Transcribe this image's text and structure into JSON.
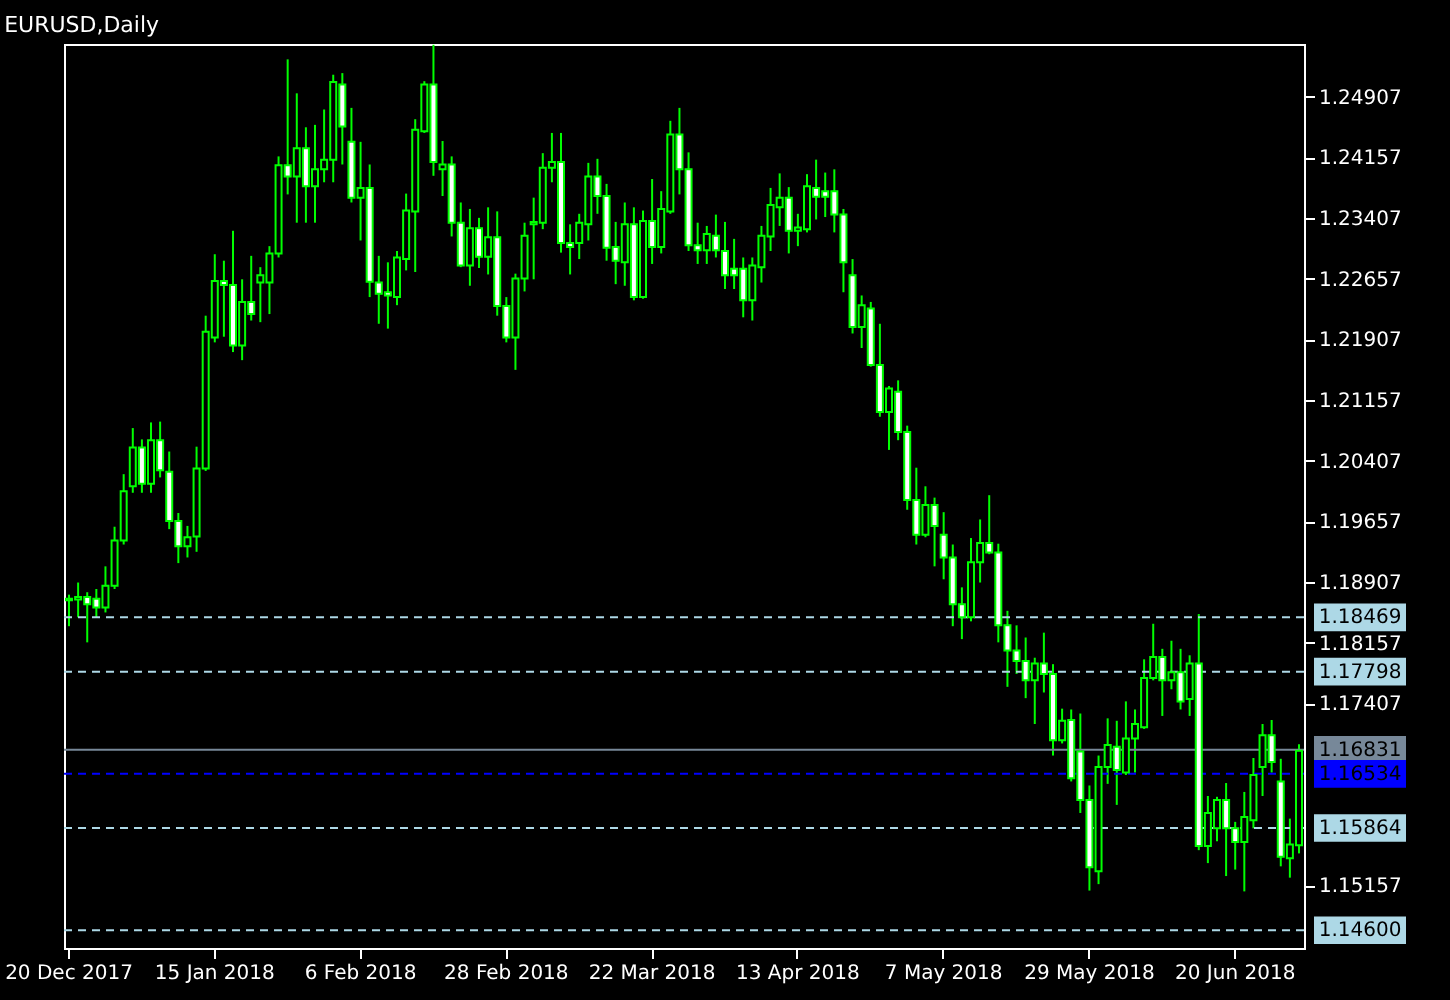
{
  "chart_data": {
    "type": "candlestick",
    "title": "EURUSD,Daily",
    "color": "#00ff00",
    "categories": [
      "20 Dec 2017",
      null,
      null,
      null,
      null,
      null,
      null,
      null,
      null,
      null,
      null,
      null,
      null,
      null,
      null,
      null,
      "15 Jan 2018",
      null,
      null,
      null,
      null,
      null,
      null,
      null,
      null,
      null,
      null,
      null,
      null,
      null,
      null,
      null,
      "6 Feb 2018",
      null,
      null,
      null,
      null,
      null,
      null,
      null,
      null,
      null,
      null,
      null,
      null,
      null,
      null,
      null,
      "28 Feb 2018",
      null,
      null,
      null,
      null,
      null,
      null,
      null,
      null,
      null,
      null,
      null,
      null,
      null,
      null,
      null,
      "22 Mar 2018",
      null,
      null,
      null,
      null,
      null,
      null,
      null,
      null,
      null,
      null,
      null,
      null,
      null,
      null,
      null,
      "13 Apr 2018",
      null,
      null,
      null,
      null,
      null,
      null,
      null,
      null,
      null,
      null,
      null,
      null,
      null,
      null,
      null,
      "7 May 2018",
      null,
      null,
      null,
      null,
      null,
      null,
      null,
      null,
      null,
      null,
      null,
      null,
      null,
      null,
      null,
      "29 May 2018",
      null,
      null,
      null,
      null,
      null,
      null,
      null,
      null,
      null,
      null,
      null,
      null,
      null,
      null,
      null,
      "20 Jun 2018",
      null,
      null,
      null,
      null,
      null,
      null,
      null
    ],
    "ohlc": [
      [
        1.1868,
        1.1875,
        1.1836,
        1.187
      ],
      [
        1.1869,
        1.189,
        1.1847,
        1.1872
      ],
      [
        1.1872,
        1.1878,
        1.1816,
        1.1863
      ],
      [
        1.187,
        1.1882,
        1.1847,
        1.1859
      ],
      [
        1.1859,
        1.191,
        1.1853,
        1.1886
      ],
      [
        1.1886,
        1.1959,
        1.1882,
        1.1942
      ],
      [
        1.1942,
        1.2024,
        1.1937,
        1.2003
      ],
      [
        1.2009,
        1.2081,
        1.2001,
        1.2057
      ],
      [
        1.2057,
        1.2067,
        1.2001,
        1.2012
      ],
      [
        1.2012,
        1.2088,
        1.2001,
        1.2066
      ],
      [
        1.2066,
        1.2089,
        1.202,
        1.2029
      ],
      [
        1.2027,
        1.2052,
        1.1956,
        1.1966
      ],
      [
        1.1966,
        1.1976,
        1.1914,
        1.1935
      ],
      [
        1.1935,
        1.196,
        1.1921,
        1.1946
      ],
      [
        1.1947,
        1.2058,
        1.1928,
        1.2031
      ],
      [
        1.2031,
        1.222,
        1.2028,
        1.22
      ],
      [
        1.2193,
        1.2296,
        1.2187,
        1.2263
      ],
      [
        1.2263,
        1.2288,
        1.2194,
        1.2258
      ],
      [
        1.2258,
        1.2325,
        1.2175,
        1.2183
      ],
      [
        1.2183,
        1.2265,
        1.2165,
        1.2237
      ],
      [
        1.2237,
        1.2294,
        1.2214,
        1.2222
      ],
      [
        1.2261,
        1.228,
        1.2212,
        1.227
      ],
      [
        1.2261,
        1.2306,
        1.2222,
        1.2297
      ],
      [
        1.2297,
        1.2417,
        1.2292,
        1.2406
      ],
      [
        1.2406,
        1.2537,
        1.237,
        1.2392
      ],
      [
        1.2392,
        1.2495,
        1.2335,
        1.2427
      ],
      [
        1.2427,
        1.2453,
        1.2335,
        1.238
      ],
      [
        1.238,
        1.2456,
        1.2335,
        1.2401
      ],
      [
        1.2401,
        1.2475,
        1.2385,
        1.2413
      ],
      [
        1.2413,
        1.2518,
        1.2385,
        1.2509
      ],
      [
        1.2506,
        1.252,
        1.2407,
        1.2454
      ],
      [
        1.2435,
        1.2477,
        1.236,
        1.2366
      ],
      [
        1.2366,
        1.2435,
        1.2313,
        1.2378
      ],
      [
        1.2378,
        1.2407,
        1.2243,
        1.2262
      ],
      [
        1.2261,
        1.2294,
        1.221,
        1.2247
      ],
      [
        1.2249,
        1.2286,
        1.2204,
        1.2245
      ],
      [
        1.2243,
        1.23,
        1.2233,
        1.2292
      ],
      [
        1.229,
        1.2371,
        1.2276,
        1.235
      ],
      [
        1.2349,
        1.2463,
        1.2274,
        1.245
      ],
      [
        1.2448,
        1.251,
        1.2446,
        1.2506
      ],
      [
        1.2506,
        1.2555,
        1.2393,
        1.241
      ],
      [
        1.2401,
        1.2436,
        1.2368,
        1.2407
      ],
      [
        1.2407,
        1.2417,
        1.2318,
        1.2335
      ],
      [
        1.2335,
        1.236,
        1.228,
        1.2282
      ],
      [
        1.2282,
        1.2352,
        1.2257,
        1.2328
      ],
      [
        1.2328,
        1.2341,
        1.2279,
        1.2293
      ],
      [
        1.2293,
        1.2354,
        1.2271,
        1.2317
      ],
      [
        1.2317,
        1.2349,
        1.222,
        1.2232
      ],
      [
        1.2232,
        1.2243,
        1.2187,
        1.2193
      ],
      [
        1.2193,
        1.2272,
        1.2153,
        1.2266
      ],
      [
        1.2266,
        1.2335,
        1.225,
        1.2319
      ],
      [
        1.2333,
        1.2366,
        1.2265,
        1.2336
      ],
      [
        1.2335,
        1.2421,
        1.2327,
        1.2403
      ],
      [
        1.2403,
        1.2446,
        1.2385,
        1.241
      ],
      [
        1.241,
        1.2446,
        1.2298,
        1.231
      ],
      [
        1.231,
        1.2333,
        1.2271,
        1.2305
      ],
      [
        1.231,
        1.2346,
        1.229,
        1.2335
      ],
      [
        1.2333,
        1.2409,
        1.2313,
        1.2392
      ],
      [
        1.2392,
        1.2414,
        1.2346,
        1.2368
      ],
      [
        1.2368,
        1.2383,
        1.2288,
        1.2304
      ],
      [
        1.2305,
        1.2336,
        1.2259,
        1.2288
      ],
      [
        1.2286,
        1.236,
        1.2257,
        1.2333
      ],
      [
        1.2333,
        1.2354,
        1.2239,
        1.2243
      ],
      [
        1.2243,
        1.235,
        1.2241,
        1.2337
      ],
      [
        1.2337,
        1.2389,
        1.2284,
        1.2305
      ],
      [
        1.2305,
        1.2374,
        1.2297,
        1.2352
      ],
      [
        1.2349,
        1.2461,
        1.2346,
        1.2444
      ],
      [
        1.2444,
        1.2477,
        1.237,
        1.2401
      ],
      [
        1.2401,
        1.2422,
        1.23,
        1.2307
      ],
      [
        1.2307,
        1.2335,
        1.2284,
        1.2301
      ],
      [
        1.2301,
        1.2331,
        1.2284,
        1.2321
      ],
      [
        1.2319,
        1.2345,
        1.2292,
        1.2301
      ],
      [
        1.23,
        1.2336,
        1.2253,
        1.227
      ],
      [
        1.2278,
        1.2315,
        1.2253,
        1.227
      ],
      [
        1.2278,
        1.2292,
        1.2218,
        1.2239
      ],
      [
        1.2239,
        1.2292,
        1.2214,
        1.2282
      ],
      [
        1.228,
        1.2331,
        1.2261,
        1.2319
      ],
      [
        1.2318,
        1.2378,
        1.23,
        1.2357
      ],
      [
        1.2354,
        1.2396,
        1.2331,
        1.2366
      ],
      [
        1.2366,
        1.2379,
        1.2297,
        1.2325
      ],
      [
        1.2325,
        1.2346,
        1.2306,
        1.2329
      ],
      [
        1.2327,
        1.2395,
        1.2323,
        1.238
      ],
      [
        1.2378,
        1.2413,
        1.2339,
        1.2367
      ],
      [
        1.2374,
        1.2397,
        1.2342,
        1.2367
      ],
      [
        1.2374,
        1.2401,
        1.2323,
        1.2345
      ],
      [
        1.2345,
        1.2352,
        1.2249,
        1.2286
      ],
      [
        1.227,
        1.229,
        1.2198,
        1.2206
      ],
      [
        1.2206,
        1.2245,
        1.218,
        1.2233
      ],
      [
        1.2229,
        1.2237,
        1.2157,
        1.2159
      ],
      [
        1.2159,
        1.221,
        1.2095,
        1.2101
      ],
      [
        1.2101,
        1.2133,
        1.2054,
        1.213
      ],
      [
        1.2126,
        1.214,
        1.2066,
        1.2076
      ],
      [
        1.2076,
        1.2084,
        1.198,
        1.1992
      ],
      [
        1.1992,
        1.2032,
        1.1937,
        1.1949
      ],
      [
        1.1949,
        1.2009,
        1.1946,
        1.1986
      ],
      [
        1.1986,
        1.1995,
        1.191,
        1.196
      ],
      [
        1.1949,
        1.1977,
        1.1894,
        1.1921
      ],
      [
        1.1921,
        1.1937,
        1.1836,
        1.1863
      ],
      [
        1.1863,
        1.1884,
        1.182,
        1.1847
      ],
      [
        1.1847,
        1.1945,
        1.1842,
        1.1915
      ],
      [
        1.1915,
        1.1968,
        1.189,
        1.1939
      ],
      [
        1.1939,
        1.1998,
        1.1925,
        1.1927
      ],
      [
        1.1927,
        1.1938,
        1.1816,
        1.1837
      ],
      [
        1.1837,
        1.1855,
        1.1761,
        1.1806
      ],
      [
        1.1806,
        1.1837,
        1.1777,
        1.1793
      ],
      [
        1.1793,
        1.1822,
        1.1747,
        1.1769
      ],
      [
        1.1769,
        1.1797,
        1.1715,
        1.179
      ],
      [
        1.179,
        1.1828,
        1.1754,
        1.1777
      ],
      [
        1.1777,
        1.1789,
        1.1676,
        1.1695
      ],
      [
        1.1695,
        1.1734,
        1.1691,
        1.1719
      ],
      [
        1.172,
        1.1733,
        1.1644,
        1.1648
      ],
      [
        1.1681,
        1.1728,
        1.1605,
        1.1621
      ],
      [
        1.1621,
        1.1639,
        1.1509,
        1.1538
      ],
      [
        1.1533,
        1.1676,
        1.1517,
        1.1662
      ],
      [
        1.1662,
        1.1722,
        1.1641,
        1.1689
      ],
      [
        1.1687,
        1.1719,
        1.1615,
        1.1658
      ],
      [
        1.1655,
        1.1743,
        1.1652,
        1.1697
      ],
      [
        1.1697,
        1.1733,
        1.1655,
        1.1715
      ],
      [
        1.1711,
        1.1795,
        1.1709,
        1.1772
      ],
      [
        1.1772,
        1.1839,
        1.1769,
        1.1798
      ],
      [
        1.1798,
        1.1808,
        1.1725,
        1.1769
      ],
      [
        1.1769,
        1.1818,
        1.1758,
        1.1779
      ],
      [
        1.1779,
        1.1808,
        1.1733,
        1.1743
      ],
      [
        1.1746,
        1.18,
        1.1725,
        1.179
      ],
      [
        1.179,
        1.1851,
        1.1559,
        1.1564
      ],
      [
        1.1564,
        1.1626,
        1.1543,
        1.1605
      ],
      [
        1.1586,
        1.1625,
        1.157,
        1.1621
      ],
      [
        1.1621,
        1.1642,
        1.1527,
        1.1586
      ],
      [
        1.1586,
        1.1594,
        1.1535,
        1.1569
      ],
      [
        1.1569,
        1.1631,
        1.1508,
        1.16
      ],
      [
        1.1596,
        1.1673,
        1.1586,
        1.1652
      ],
      [
        1.1662,
        1.1715,
        1.1626,
        1.1701
      ],
      [
        1.1701,
        1.172,
        1.1655,
        1.1668
      ],
      [
        1.1644,
        1.1672,
        1.1539,
        1.1551
      ],
      [
        1.1549,
        1.1598,
        1.1525,
        1.1566
      ],
      [
        1.1565,
        1.169,
        1.1555,
        1.1682
      ]
    ],
    "ylim": [
      1.1438,
      1.2556
    ],
    "yticks": [
      1.15157,
      1.17407,
      1.18157,
      1.18907,
      1.19657,
      1.20407,
      1.21157,
      1.21907,
      1.22657,
      1.23407,
      1.24157,
      1.24907
    ],
    "ref_lines": [
      {
        "axis": "y",
        "value": 1.18469,
        "label": "1.18469",
        "color": "#add8e6",
        "line_style": "dashed"
      },
      {
        "axis": "y",
        "value": 1.17798,
        "label": "1.17798",
        "color": "#add8e6",
        "line_style": "dashed"
      },
      {
        "axis": "y",
        "value": 1.16831,
        "label": "1.16831",
        "color": "#778899",
        "line_style": "solid"
      },
      {
        "axis": "y",
        "value": 1.16534,
        "label": "1.16534",
        "color": "#0000ff",
        "line_style": "dashed"
      },
      {
        "axis": "y",
        "value": 1.15864,
        "label": "1.15864",
        "color": "#add8e6",
        "line_style": "dashed"
      },
      {
        "axis": "y",
        "value": 1.146,
        "label": "1.14600",
        "color": "#add8e6",
        "line_style": "dashed"
      }
    ]
  }
}
